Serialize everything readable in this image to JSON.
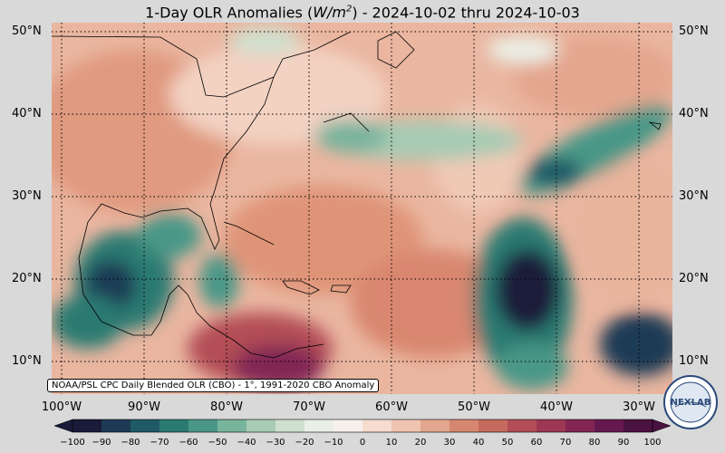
{
  "title": {
    "prefix": "1-Day OLR Anomalies (",
    "unit_main": "W/m",
    "unit_exp": "2",
    "suffix": ") - 2024-10-02 thru 2024-10-03"
  },
  "latitude_labels": [
    "50°N",
    "40°N",
    "30°N",
    "20°N",
    "10°N"
  ],
  "longitude_labels": [
    "100°W",
    "90°W",
    "80°W",
    "70°W",
    "60°W",
    "50°W",
    "40°W",
    "30°W"
  ],
  "credit": "NOAA/PSL CPC Daily Blended OLR (CBO) - 1°, 1991-2020 CBO Anomaly",
  "colorbar": {
    "ticks": [
      "−100",
      "−90",
      "−80",
      "−70",
      "−60",
      "−50",
      "−40",
      "−30",
      "−20",
      "−10",
      "0",
      "10",
      "20",
      "30",
      "40",
      "50",
      "60",
      "70",
      "80",
      "90",
      "100"
    ],
    "colors": [
      "#1a1a3a",
      "#1d3a55",
      "#1f5a66",
      "#2b7a72",
      "#4a9787",
      "#78b39c",
      "#a7cbb3",
      "#cfe0cf",
      "#ebf0e6",
      "#f7f1ec",
      "#f5dccf",
      "#efc4b0",
      "#e4a68e",
      "#d6876f",
      "#c66a5d",
      "#b34e57",
      "#9c3855",
      "#822654",
      "#66194f",
      "#4a1240"
    ]
  },
  "logo_text": "NEXLAB",
  "colors": {
    "background": "#d9d9d9",
    "positive_anomaly": "#e4a68e",
    "negative_anomaly": "#2b7a72",
    "strong_negative": "#1a1a3a",
    "strong_positive": "#822654"
  }
}
